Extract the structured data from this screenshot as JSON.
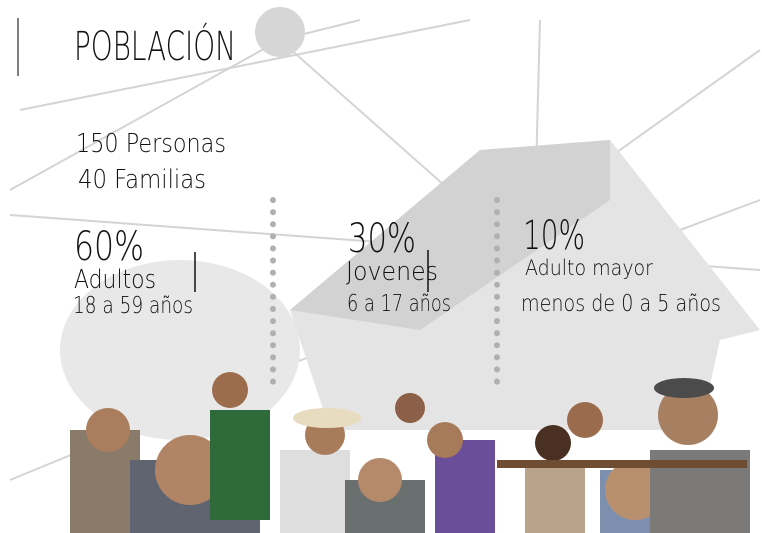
{
  "header": {
    "title": "POBLACIÓN"
  },
  "summary": [
    "150 Personas",
    "40 Familias"
  ],
  "groups": [
    {
      "percent": "60%",
      "label": "Adultos",
      "range": "18 a 59 años"
    },
    {
      "percent": "30%",
      "label": "Jovenes",
      "range": "6 a 17 años"
    },
    {
      "percent": "10%",
      "label": "Adulto mayor",
      "range": "menos de 0 a 5 años"
    }
  ]
}
